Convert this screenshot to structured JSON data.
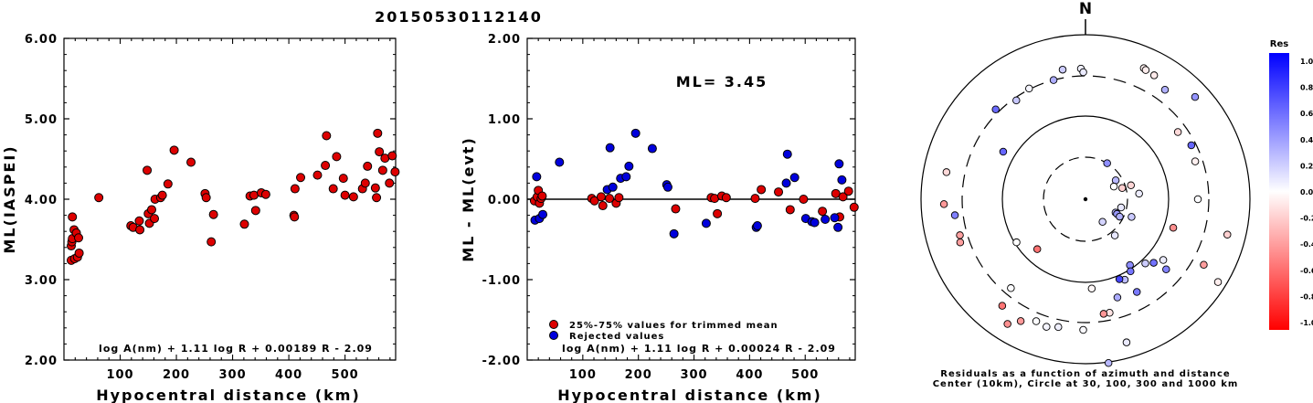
{
  "title": "20150530112140",
  "chart_data": [
    {
      "type": "scatter",
      "name": "magnitude_vs_distance",
      "ylabel": "ML(IASPEI)",
      "xlabel": "Hypocentral distance (km)",
      "xlim": [
        0,
        590
      ],
      "ylim": [
        2.0,
        6.0
      ],
      "xticks": [
        100,
        200,
        300,
        400,
        500
      ],
      "ytick_labels": [
        "6.00",
        "5.00",
        "4.00",
        "3.00",
        "2.00"
      ],
      "yticks": [
        6.0,
        5.0,
        4.0,
        3.0,
        2.0
      ],
      "formula": "log A(nm) + 1.11 log R + 0.00189 R - 2.09",
      "point_color": "#dd0000",
      "points": [
        [
          13,
          3.24
        ],
        [
          13,
          3.42
        ],
        [
          14,
          3.47
        ],
        [
          15,
          3.51
        ],
        [
          15,
          3.78
        ],
        [
          18,
          3.62
        ],
        [
          19,
          3.26
        ],
        [
          22,
          3.58
        ],
        [
          24,
          3.28
        ],
        [
          26,
          3.52
        ],
        [
          27,
          3.33
        ],
        [
          62,
          4.02
        ],
        [
          119,
          3.67
        ],
        [
          123,
          3.65
        ],
        [
          134,
          3.73
        ],
        [
          135,
          3.62
        ],
        [
          148,
          4.36
        ],
        [
          150,
          3.82
        ],
        [
          152,
          3.7
        ],
        [
          156,
          3.87
        ],
        [
          161,
          3.76
        ],
        [
          162,
          4.0
        ],
        [
          172,
          4.02
        ],
        [
          175,
          4.05
        ],
        [
          185,
          4.19
        ],
        [
          196,
          4.61
        ],
        [
          226,
          4.46
        ],
        [
          251,
          4.07
        ],
        [
          253,
          4.02
        ],
        [
          262,
          3.47
        ],
        [
          266,
          3.81
        ],
        [
          321,
          3.69
        ],
        [
          331,
          4.04
        ],
        [
          338,
          4.05
        ],
        [
          341,
          3.86
        ],
        [
          351,
          4.08
        ],
        [
          359,
          4.06
        ],
        [
          409,
          3.8
        ],
        [
          410,
          3.78
        ],
        [
          411,
          4.13
        ],
        [
          421,
          4.27
        ],
        [
          451,
          4.3
        ],
        [
          465,
          4.42
        ],
        [
          467,
          4.79
        ],
        [
          479,
          4.13
        ],
        [
          485,
          4.53
        ],
        [
          497,
          4.26
        ],
        [
          500,
          4.05
        ],
        [
          515,
          4.03
        ],
        [
          531,
          4.13
        ],
        [
          536,
          4.2
        ],
        [
          540,
          4.41
        ],
        [
          554,
          4.14
        ],
        [
          556,
          4.02
        ],
        [
          558,
          4.82
        ],
        [
          561,
          4.59
        ],
        [
          567,
          4.36
        ],
        [
          571,
          4.51
        ],
        [
          579,
          4.2
        ],
        [
          584,
          4.54
        ],
        [
          589,
          4.34
        ]
      ]
    },
    {
      "type": "scatter",
      "name": "residuals_vs_distance",
      "ylabel": "ML - ML(evt)",
      "xlabel": "Hypocentral distance (km)",
      "xlim": [
        0,
        590
      ],
      "ylim": [
        -2.0,
        2.0
      ],
      "xticks": [
        100,
        200,
        300,
        400,
        500
      ],
      "ytick_labels": [
        "2.00",
        "1.00",
        "0.00",
        "-1.00",
        "-2.00"
      ],
      "yticks": [
        2.0,
        1.0,
        0.0,
        -1.0,
        -2.0
      ],
      "annotation": "ML= 3.45",
      "formula": "log A(nm) + 1.11 log R + 0.00024 R - 2.09",
      "legend": [
        {
          "label": "25%-75% values for trimmed mean",
          "color": "#dd0000"
        },
        {
          "label": "Rejected values",
          "color": "#0000dd"
        }
      ],
      "series": [
        {
          "name": "25%-75% values for trimmed mean",
          "color": "#dd0000",
          "points": [
            [
              13,
              -0.02
            ],
            [
              18,
              0.03
            ],
            [
              20,
              0.11
            ],
            [
              22,
              -0.05
            ],
            [
              25,
              0.01
            ],
            [
              27,
              0.04
            ],
            [
              116,
              0.01
            ],
            [
              121,
              -0.02
            ],
            [
              133,
              0.03
            ],
            [
              136,
              -0.08
            ],
            [
              148,
              0.01
            ],
            [
              160,
              -0.05
            ],
            [
              165,
              0.02
            ],
            [
              267,
              -0.12
            ],
            [
              331,
              0.02
            ],
            [
              337,
              0.01
            ],
            [
              342,
              -0.18
            ],
            [
              350,
              0.04
            ],
            [
              358,
              0.02
            ],
            [
              410,
              0.01
            ],
            [
              421,
              0.12
            ],
            [
              452,
              0.09
            ],
            [
              473,
              -0.13
            ],
            [
              497,
              0.0
            ],
            [
              531,
              -0.15
            ],
            [
              555,
              0.07
            ],
            [
              562,
              -0.22
            ],
            [
              568,
              0.03
            ],
            [
              578,
              0.1
            ],
            [
              588,
              -0.1
            ]
          ]
        },
        {
          "name": "Rejected values",
          "color": "#0000dd",
          "points": [
            [
              14,
              -0.26
            ],
            [
              17,
              0.28
            ],
            [
              22,
              -0.24
            ],
            [
              28,
              -0.19
            ],
            [
              58,
              0.46
            ],
            [
              144,
              0.12
            ],
            [
              149,
              0.64
            ],
            [
              154,
              0.15
            ],
            [
              168,
              0.26
            ],
            [
              178,
              0.28
            ],
            [
              183,
              0.41
            ],
            [
              195,
              0.82
            ],
            [
              225,
              0.63
            ],
            [
              251,
              0.18
            ],
            [
              253,
              0.15
            ],
            [
              264,
              -0.43
            ],
            [
              322,
              -0.3
            ],
            [
              412,
              -0.35
            ],
            [
              414,
              -0.33
            ],
            [
              466,
              0.2
            ],
            [
              468,
              0.56
            ],
            [
              481,
              0.27
            ],
            [
              501,
              -0.24
            ],
            [
              512,
              -0.28
            ],
            [
              517,
              -0.29
            ],
            [
              536,
              -0.25
            ],
            [
              553,
              -0.23
            ],
            [
              559,
              -0.35
            ],
            [
              561,
              0.44
            ],
            [
              566,
              0.24
            ]
          ]
        }
      ]
    },
    {
      "type": "scatter",
      "name": "residual_map",
      "north_label": "N",
      "caption_line1": "Residuals as a function of azimuth and distance",
      "caption_line2": "Center (10km), Circle at 30, 100, 300 and 1000 km",
      "colorbar": {
        "title": "Res",
        "tick_labels": [
          "1.0",
          "0.8",
          "0.6",
          "0.4",
          "0.2",
          "0.0",
          "-0.2",
          "-0.4",
          "-0.6",
          "-0.8",
          "-1.0"
        ],
        "ticks": [
          1.0,
          0.8,
          0.6,
          0.4,
          0.2,
          0.0,
          -0.2,
          -0.4,
          -0.6,
          -0.8,
          -1.0
        ],
        "top_color": "#0000ff",
        "mid_color": "#ffffff",
        "bottom_color": "#ff0000"
      },
      "stations": [
        [
          24,
          -0.06
        ],
        [
          25,
          -0.07
        ],
        [
          29,
          -0.08
        ],
        [
          31,
          0.44
        ],
        [
          36,
          0.31
        ],
        [
          47,
          0.42
        ],
        [
          54,
          -0.15
        ],
        [
          58,
          0.28
        ],
        [
          63,
          0.6
        ],
        [
          66,
          0.0
        ],
        [
          71,
          -0.06
        ],
        [
          73,
          -0.16
        ],
        [
          73,
          -0.19
        ],
        [
          84,
          0.07
        ],
        [
          90,
          0.01
        ],
        [
          103,
          0.09
        ],
        [
          104,
          -0.18
        ],
        [
          108,
          -0.44
        ],
        [
          111,
          0.21
        ],
        [
          114,
          0.3
        ],
        [
          115,
          0.4
        ],
        [
          117,
          0.31
        ],
        [
          119,
          -0.38
        ],
        [
          122,
          -0.07
        ],
        [
          128,
          0.08
        ],
        [
          131,
          0.49
        ],
        [
          133,
          0.55
        ],
        [
          137,
          0.2
        ],
        [
          141,
          0.09
        ],
        [
          143,
          0.17
        ],
        [
          146,
          0.45
        ],
        [
          148,
          0.54
        ],
        [
          151,
          0.52
        ],
        [
          154,
          0.26
        ],
        [
          157,
          0.73
        ],
        [
          162,
          0.33
        ],
        [
          164,
          0.08
        ],
        [
          168,
          -0.11
        ],
        [
          171,
          -0.41
        ],
        [
          172,
          0.28
        ],
        [
          176,
          -0.03
        ],
        [
          181,
          0.02
        ],
        [
          192,
          0.06
        ],
        [
          197,
          0.04
        ],
        [
          202,
          0.01
        ],
        [
          208,
          -0.4
        ],
        [
          212,
          -0.43
        ],
        [
          218,
          -0.54
        ],
        [
          220,
          0.01
        ],
        [
          224,
          -0.55
        ],
        [
          238,
          0.0
        ],
        [
          251,
          -0.38
        ],
        [
          254,
          -0.37
        ],
        [
          263,
          0.5
        ],
        [
          268,
          -0.4
        ],
        [
          281,
          -0.15
        ],
        [
          300,
          0.6
        ],
        [
          315,
          0.58
        ],
        [
          325,
          0.22
        ],
        [
          333,
          0.04
        ],
        [
          345,
          0.32
        ],
        [
          350,
          0.2
        ],
        [
          358,
          0.06
        ],
        [
          359,
          0.08
        ]
      ]
    }
  ]
}
